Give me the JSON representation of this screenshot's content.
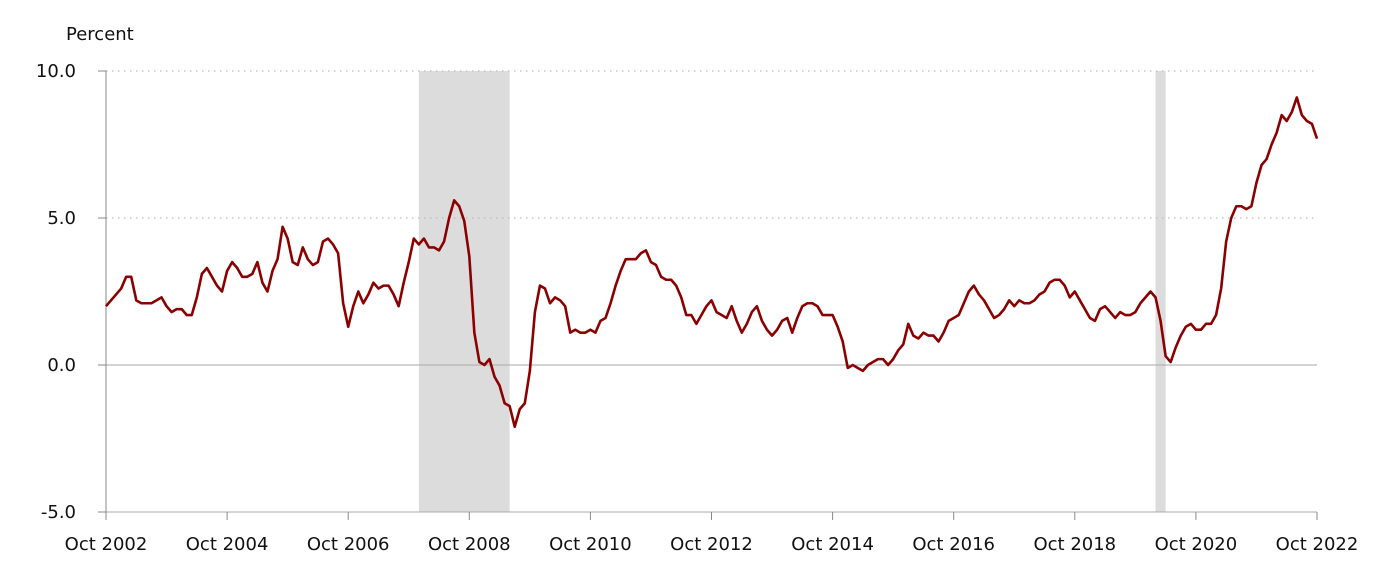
{
  "chart_data": {
    "type": "line",
    "ylabel": "Percent",
    "xlabel": "",
    "ylim": [
      -5,
      10
    ],
    "y_ticks": [
      {
        "value": -5,
        "label": "-5.0"
      },
      {
        "value": 0,
        "label": "0.0"
      },
      {
        "value": 5,
        "label": "5.0"
      },
      {
        "value": 10,
        "label": "10.0"
      }
    ],
    "x_ticks": [
      "2002-10",
      "2004-10",
      "2006-10",
      "2008-10",
      "2010-10",
      "2012-10",
      "2014-10",
      "2016-10",
      "2018-10",
      "2020-10",
      "2022-10"
    ],
    "x_tick_labels": [
      "Oct 2002",
      "Oct 2004",
      "Oct 2006",
      "Oct 2008",
      "Oct 2010",
      "Oct 2012",
      "Oct 2014",
      "Oct 2016",
      "Oct 2018",
      "Oct 2020",
      "Oct 2022"
    ],
    "xlim": [
      "2002-10",
      "2022-10"
    ],
    "grid": "horizontal dotted",
    "recessions": [
      {
        "start": "2007-12",
        "end": "2009-06"
      },
      {
        "start": "2020-02",
        "end": "2020-04"
      }
    ],
    "colors": {
      "line": "#8b0000",
      "recession": "#dcdcdc",
      "grid": "#bbbbbb",
      "axis": "#888888"
    },
    "series": [
      {
        "start": "2002-10",
        "values": [
          2.0,
          2.2,
          2.4,
          2.6,
          3.0,
          3.0,
          2.2,
          2.1,
          2.1,
          2.1,
          2.2,
          2.3,
          2.0,
          1.8,
          1.9,
          1.9,
          1.7,
          1.7,
          2.3,
          3.1,
          3.3,
          3.0,
          2.7,
          2.5,
          3.2,
          3.5,
          3.3,
          3.0,
          3.0,
          3.1,
          3.5,
          2.8,
          2.5,
          3.2,
          3.6,
          4.7,
          4.3,
          3.5,
          3.4,
          4.0,
          3.6,
          3.4,
          3.5,
          4.2,
          4.3,
          4.1,
          3.8,
          2.1,
          1.3,
          2.0,
          2.5,
          2.1,
          2.4,
          2.8,
          2.6,
          2.7,
          2.7,
          2.4,
          2.0,
          2.8,
          3.5,
          4.3,
          4.1,
          4.3,
          4.0,
          4.0,
          3.9,
          4.2,
          5.0,
          5.6,
          5.4,
          4.9,
          3.7,
          1.1,
          0.1,
          0.0,
          0.2,
          -0.4,
          -0.7,
          -1.3,
          -1.4,
          -2.1,
          -1.5,
          -1.3,
          -0.2,
          1.8,
          2.7,
          2.6,
          2.1,
          2.3,
          2.2,
          2.0,
          1.1,
          1.2,
          1.1,
          1.1,
          1.2,
          1.1,
          1.5,
          1.6,
          2.1,
          2.7,
          3.2,
          3.6,
          3.6,
          3.6,
          3.8,
          3.9,
          3.5,
          3.4,
          3.0,
          2.9,
          2.9,
          2.7,
          2.3,
          1.7,
          1.7,
          1.4,
          1.7,
          2.0,
          2.2,
          1.8,
          1.7,
          1.6,
          2.0,
          1.5,
          1.1,
          1.4,
          1.8,
          2.0,
          1.5,
          1.2,
          1.0,
          1.2,
          1.5,
          1.6,
          1.1,
          1.6,
          2.0,
          2.1,
          2.1,
          2.0,
          1.7,
          1.7,
          1.7,
          1.3,
          0.8,
          -0.1,
          0.0,
          -0.1,
          -0.2,
          0.0,
          0.1,
          0.2,
          0.2,
          0.0,
          0.2,
          0.5,
          0.7,
          1.4,
          1.0,
          0.9,
          1.1,
          1.0,
          1.0,
          0.8,
          1.1,
          1.5,
          1.6,
          1.7,
          2.1,
          2.5,
          2.7,
          2.4,
          2.2,
          1.9,
          1.6,
          1.7,
          1.9,
          2.2,
          2.0,
          2.2,
          2.1,
          2.1,
          2.2,
          2.4,
          2.5,
          2.8,
          2.9,
          2.9,
          2.7,
          2.3,
          2.5,
          2.2,
          1.9,
          1.6,
          1.5,
          1.9,
          2.0,
          1.8,
          1.6,
          1.8,
          1.7,
          1.7,
          1.8,
          2.1,
          2.3,
          2.5,
          2.3,
          1.5,
          0.3,
          0.1,
          0.6,
          1.0,
          1.3,
          1.4,
          1.2,
          1.2,
          1.4,
          1.4,
          1.7,
          2.6,
          4.2,
          5.0,
          5.4,
          5.4,
          5.3,
          5.4,
          6.2,
          6.8,
          7.0,
          7.5,
          7.9,
          8.5,
          8.3,
          8.6,
          9.1,
          8.5,
          8.3,
          8.2,
          7.7
        ]
      }
    ]
  }
}
